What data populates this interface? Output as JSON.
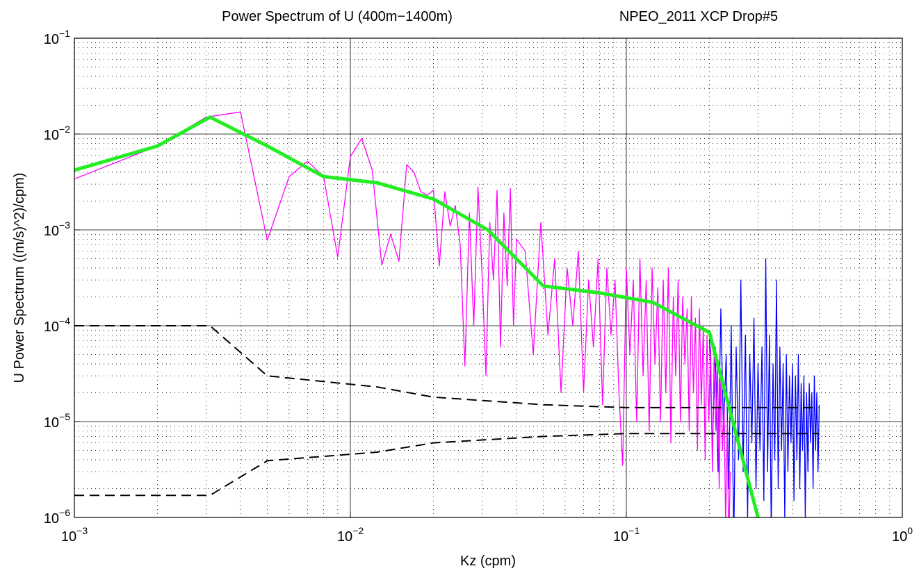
{
  "chart_data": {
    "type": "line",
    "title": "Power Spectrum of U  (400m−1400m)",
    "subtitle": "NPEO_2011 XCP Drop#5",
    "x_label": "Kz (cpm)",
    "y_label": "U Power Spectrum ((m/s)^2)/cpm)",
    "x_log": true,
    "y_log": true,
    "grid": true,
    "minor_grid": true,
    "xlim": [
      0.001,
      1
    ],
    "ylim": [
      1e-06,
      0.1
    ],
    "xticks": [
      {
        "value": 0.001,
        "label": "10^−3"
      },
      {
        "value": 0.01,
        "label": "10^−2"
      },
      {
        "value": 0.1,
        "label": "10^−1"
      },
      {
        "value": 1,
        "label": "10^0"
      }
    ],
    "yticks": [
      {
        "value": 1e-06,
        "label": "10^−6"
      },
      {
        "value": 1e-05,
        "label": "10^−5"
      },
      {
        "value": 0.0001,
        "label": "10^−4"
      },
      {
        "value": 0.001,
        "label": "10^−3"
      },
      {
        "value": 0.01,
        "label": "10^−2"
      },
      {
        "value": 0.1,
        "label": "10^−1"
      }
    ],
    "series": [
      {
        "color": "#0000ff",
        "width": 1.3,
        "dash": "none",
        "x": [
          0.2,
          0.205,
          0.21,
          0.215,
          0.22,
          0.225,
          0.23,
          0.235,
          0.24,
          0.245,
          0.25,
          0.255,
          0.26,
          0.265,
          0.27,
          0.275,
          0.28,
          0.285,
          0.29,
          0.295,
          0.3,
          0.305,
          0.31,
          0.315,
          0.32,
          0.325,
          0.33,
          0.335,
          0.34,
          0.345,
          0.35,
          0.355,
          0.36,
          0.365,
          0.37,
          0.375,
          0.38,
          0.385,
          0.39,
          0.395,
          0.4,
          0.405,
          0.41,
          0.415,
          0.42,
          0.425,
          0.43,
          0.435,
          0.44,
          0.445,
          0.45,
          0.455,
          0.46,
          0.465,
          0.47,
          0.475,
          0.48,
          0.485,
          0.49,
          0.495,
          0.5
        ],
        "values": [
          8e-05,
          5e-06,
          6e-05,
          3e-06,
          0.00015,
          8e-06,
          5e-05,
          2e-06,
          0.0001,
          5e-07,
          6e-05,
          4e-06,
          0.0003,
          3e-06,
          8e-05,
          1e-06,
          5e-05,
          6e-06,
          0.00012,
          2e-06,
          4e-05,
          5e-06,
          6e-05,
          1.5e-06,
          0.0005,
          3e-06,
          8e-05,
          7e-07,
          4e-05,
          4e-06,
          0.0003,
          2e-06,
          6e-05,
          5e-06,
          4e-05,
          1e-06,
          5e-05,
          3e-06,
          3e-05,
          6e-06,
          4e-05,
          1.5e-06,
          3e-05,
          4e-06,
          5e-05,
          2e-06,
          2.5e-05,
          5e-06,
          3e-05,
          1e-06,
          2e-05,
          3e-06,
          2.5e-05,
          6e-06,
          2e-05,
          2e-06,
          3e-05,
          5e-06,
          2e-05,
          3e-06,
          1.5e-05
        ]
      },
      {
        "color": "#ff00ff",
        "width": 1.3,
        "dash": "none",
        "x": [
          0.001,
          0.002,
          0.003,
          0.004,
          0.005,
          0.006,
          0.007,
          0.008,
          0.009,
          0.01,
          0.011,
          0.012,
          0.013,
          0.014,
          0.015,
          0.016,
          0.017,
          0.018,
          0.019,
          0.02,
          0.021,
          0.022,
          0.023,
          0.024,
          0.025,
          0.026,
          0.027,
          0.028,
          0.029,
          0.03,
          0.031,
          0.032,
          0.033,
          0.034,
          0.035,
          0.036,
          0.037,
          0.038,
          0.039,
          0.04,
          0.043,
          0.046,
          0.049,
          0.052,
          0.055,
          0.058,
          0.061,
          0.064,
          0.067,
          0.07,
          0.073,
          0.076,
          0.079,
          0.082,
          0.085,
          0.088,
          0.091,
          0.094,
          0.097,
          0.1,
          0.103,
          0.106,
          0.109,
          0.112,
          0.115,
          0.118,
          0.121,
          0.124,
          0.127,
          0.13,
          0.133,
          0.136,
          0.139,
          0.142,
          0.145,
          0.148,
          0.151,
          0.154,
          0.157,
          0.16,
          0.163,
          0.166,
          0.169,
          0.172,
          0.175,
          0.178,
          0.181,
          0.184,
          0.187,
          0.19,
          0.193,
          0.196,
          0.199,
          0.202,
          0.205,
          0.208,
          0.211,
          0.214,
          0.217,
          0.22,
          0.223,
          0.226,
          0.229,
          0.232,
          0.235,
          0.238
        ],
        "values": [
          0.0034,
          0.0075,
          0.015,
          0.017,
          0.00078,
          0.0036,
          0.0052,
          0.0036,
          0.00052,
          0.0058,
          0.009,
          0.0042,
          0.00043,
          0.0009,
          0.00047,
          0.0048,
          0.004,
          0.0025,
          0.0023,
          0.0026,
          0.00042,
          0.0025,
          0.0011,
          0.0018,
          0.0007,
          3.8e-05,
          0.0015,
          0.0001,
          0.0028,
          0.00035,
          3e-05,
          0.0012,
          0.0003,
          0.0026,
          6e-05,
          0.0015,
          0.00026,
          0.0027,
          0.0001,
          0.0008,
          0.0006,
          5e-05,
          0.0012,
          8e-05,
          0.0005,
          2e-05,
          0.0004,
          0.0001,
          0.0006,
          2e-05,
          0.0003,
          6e-05,
          0.0005,
          1.5e-05,
          0.0004,
          8e-05,
          0.0003,
          2e-05,
          3.5e-06,
          0.0004,
          5e-05,
          0.0003,
          1e-05,
          0.0005,
          3e-05,
          0.0003,
          8e-06,
          0.0004,
          4e-05,
          0.00025,
          1e-05,
          0.0003,
          2e-05,
          0.0004,
          6e-06,
          0.0002,
          3e-05,
          0.0003,
          1e-05,
          0.0002,
          4e-05,
          0.00015,
          8e-06,
          0.0002,
          2e-05,
          0.00012,
          5e-06,
          0.00015,
          1.5e-05,
          0.0001,
          4e-06,
          8e-05,
          1e-05,
          6e-05,
          3e-06,
          5e-05,
          8e-06,
          4e-05,
          2e-06,
          3e-05,
          5e-06,
          1.5e-05,
          8e-07,
          1e-05,
          5e-07,
          3e-06
        ]
      },
      {
        "color": "#000000",
        "width": 2,
        "dash": "14 8",
        "x": [
          0.001,
          0.0031,
          0.005,
          0.0125,
          0.02,
          0.05,
          0.1,
          0.5
        ],
        "values": [
          0.0001,
          0.0001,
          3e-05,
          2.3e-05,
          1.8e-05,
          1.5e-05,
          1.4e-05,
          1.4e-05
        ]
      },
      {
        "color": "#000000",
        "width": 2,
        "dash": "14 8",
        "x": [
          0.001,
          0.0031,
          0.005,
          0.0125,
          0.02,
          0.05,
          0.1,
          0.5
        ],
        "values": [
          1.7e-06,
          1.7e-06,
          3.9e-06,
          4.8e-06,
          6e-06,
          7e-06,
          7.5e-06,
          7.5e-06
        ]
      },
      {
        "color": "#22ee22",
        "width": 5,
        "dash": "none",
        "x": [
          0.001,
          0.002,
          0.0031,
          0.005,
          0.008,
          0.0125,
          0.02,
          0.0315,
          0.05,
          0.08,
          0.125,
          0.2,
          0.3
        ],
        "values": [
          0.0042,
          0.0075,
          0.015,
          0.0075,
          0.0036,
          0.0031,
          0.0021,
          0.001,
          0.00026,
          0.00022,
          0.000175,
          8.5e-05,
          1e-06
        ]
      }
    ]
  }
}
